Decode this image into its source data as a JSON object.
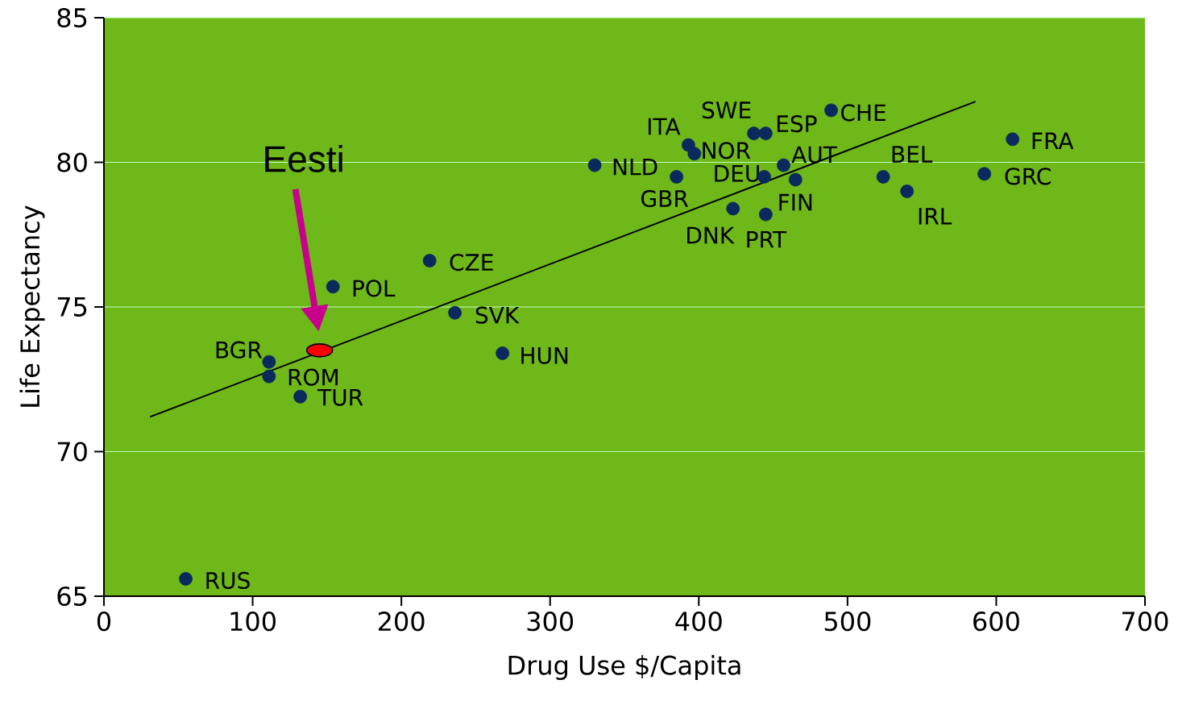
{
  "chart_data": {
    "type": "scatter",
    "xlabel": "Drug Use $/Capita",
    "ylabel": "Life Expectancy",
    "xlim": [
      0,
      700
    ],
    "ylim": [
      65,
      85
    ],
    "xticks": [
      0,
      100,
      200,
      300,
      400,
      500,
      600,
      700
    ],
    "yticks": [
      65,
      70,
      75,
      80,
      85
    ],
    "grid": "y",
    "marker": "circle",
    "series": [
      {
        "color": "#0a2a5e",
        "x": [
          55,
          111,
          111,
          132,
          154,
          219,
          236,
          268,
          330,
          385,
          393,
          397,
          437,
          445,
          489,
          457,
          444,
          465,
          423,
          445,
          524,
          540,
          611,
          592
        ],
        "values": [
          65.6,
          73.1,
          72.6,
          71.9,
          75.7,
          76.6,
          74.8,
          73.4,
          79.9,
          79.5,
          80.6,
          80.3,
          81.0,
          81.0,
          81.8,
          79.9,
          79.5,
          79.4,
          78.4,
          78.2,
          79.5,
          79.0,
          80.8,
          79.6
        ]
      },
      {
        "color": "#ff0000",
        "x": [
          145
        ],
        "values": [
          73.5
        ]
      },
      {
        "type": "line",
        "color": "#000000",
        "marker": "none",
        "x": [
          31,
          586
        ],
        "values": [
          71.2,
          82.1
        ]
      }
    ],
    "annotations": [
      {
        "text": "RUS",
        "x": 55,
        "y": 65.6
      },
      {
        "text": "BGR",
        "x": 111,
        "y": 73.1
      },
      {
        "text": "ROM",
        "x": 111,
        "y": 72.6
      },
      {
        "text": "TUR",
        "x": 132,
        "y": 71.9
      },
      {
        "text": "POL",
        "x": 154,
        "y": 75.7
      },
      {
        "text": "CZE",
        "x": 219,
        "y": 76.6
      },
      {
        "text": "SVK",
        "x": 236,
        "y": 74.8
      },
      {
        "text": "HUN",
        "x": 268,
        "y": 73.4
      },
      {
        "text": "NLD",
        "x": 330,
        "y": 79.9
      },
      {
        "text": "GBR",
        "x": 385,
        "y": 79.5
      },
      {
        "text": "ITA",
        "x": 393,
        "y": 80.6
      },
      {
        "text": "NOR",
        "x": 397,
        "y": 80.3
      },
      {
        "text": "SWE",
        "x": 437,
        "y": 81.0
      },
      {
        "text": "ESP",
        "x": 445,
        "y": 81.0
      },
      {
        "text": "CHE",
        "x": 489,
        "y": 81.8
      },
      {
        "text": "AUT",
        "x": 457,
        "y": 79.9
      },
      {
        "text": "DEU",
        "x": 444,
        "y": 79.5
      },
      {
        "text": "FIN",
        "x": 465,
        "y": 79.4
      },
      {
        "text": "DNK",
        "x": 423,
        "y": 78.4
      },
      {
        "text": "PRT",
        "x": 445,
        "y": 78.2
      },
      {
        "text": "BEL",
        "x": 524,
        "y": 79.5
      },
      {
        "text": "IRL",
        "x": 540,
        "y": 79.0
      },
      {
        "text": "FRA",
        "x": 611,
        "y": 80.8
      },
      {
        "text": "GRC",
        "x": 592,
        "y": 79.6
      },
      "Eesti"
    ]
  }
}
